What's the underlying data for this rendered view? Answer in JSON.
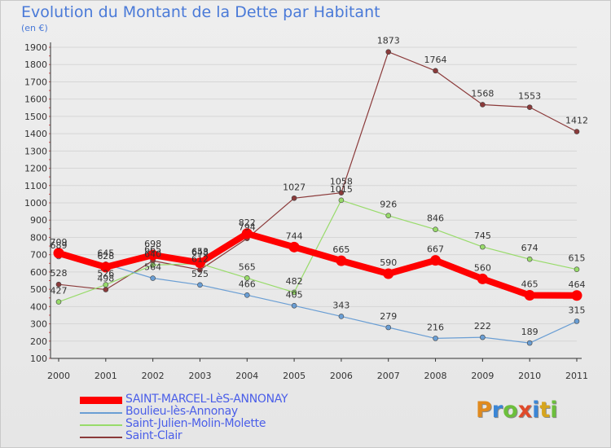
{
  "title": "Evolution du Montant de la Dette par Habitant",
  "unit": "(en €)",
  "logo": {
    "text": "Proxiti",
    "letters": [
      "P",
      "r",
      "o",
      "x",
      "i",
      "t",
      "i"
    ],
    "colors": [
      "#e08a1e",
      "#3a86d6",
      "#6cbf3c",
      "#e04a2a",
      "#3a86d6",
      "#d6a51e",
      "#6cbf3c"
    ]
  },
  "chart_data": {
    "type": "line",
    "title": "Evolution du Montant de la Dette par Habitant",
    "ylabel": "(en €)",
    "xlabel": "",
    "categories": [
      "2000",
      "2001",
      "2002",
      "2003",
      "2004",
      "2005",
      "2006",
      "2007",
      "2008",
      "2009",
      "2010",
      "2011"
    ],
    "ylim": [
      100,
      1900
    ],
    "yticks": [
      100,
      200,
      300,
      400,
      500,
      600,
      700,
      800,
      900,
      1000,
      1100,
      1200,
      1300,
      1400,
      1500,
      1600,
      1700,
      1800,
      1900
    ],
    "legend_position": "bottom-left",
    "series": [
      {
        "name": "SAINT-MARCEL-LèS-ANNONAY",
        "color": "#ff0000",
        "values": [
          709,
          628,
          698,
          653,
          822,
          744,
          665,
          590,
          667,
          560,
          465,
          464
        ],
        "labels": [
          "709",
          "628",
          "698",
          "653",
          "822",
          "744",
          "665",
          "590",
          "667",
          "560",
          "465",
          "464"
        ],
        "bold": true
      },
      {
        "name": "Boulieu-lès-Annonay",
        "color": "#6a9ed4",
        "values": [
          689,
          645,
          564,
          525,
          466,
          405,
          343,
          279,
          216,
          222,
          189,
          315
        ],
        "labels": [
          "689",
          "645",
          "564",
          "525",
          "466",
          "405",
          "343",
          "279",
          "216",
          "222",
          "189",
          "315"
        ]
      },
      {
        "name": "Saint-Julien-Molin-Molette",
        "color": "#98db6a",
        "values": [
          427,
          526,
          640,
          648,
          565,
          482,
          1015,
          926,
          846,
          745,
          674,
          615
        ],
        "labels": [
          "427",
          "526",
          "640",
          "648",
          "565",
          "482",
          "1015",
          "926",
          "846",
          "745",
          "674",
          "615"
        ]
      },
      {
        "name": "Saint-Clair",
        "color": "#8b3a3a",
        "values": [
          528,
          498,
          665,
          612,
          794,
          1027,
          1058,
          1873,
          1764,
          1568,
          1553,
          1412
        ],
        "labels": [
          "528",
          "498",
          "665",
          "612",
          "794",
          "1027",
          "1058",
          "1873",
          "1764",
          "1568",
          "1553",
          "1412"
        ]
      }
    ]
  }
}
